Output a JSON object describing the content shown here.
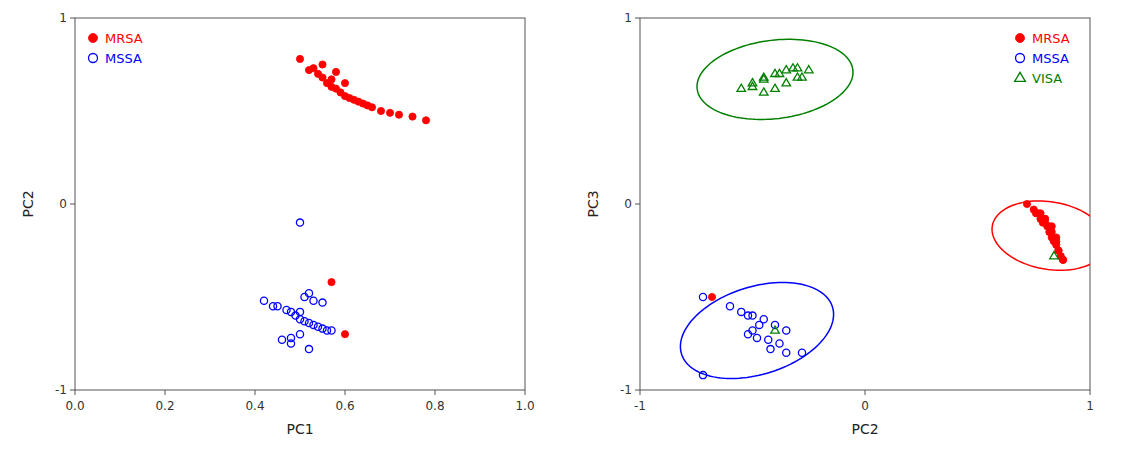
{
  "chart_data": [
    {
      "type": "scatter",
      "xlabel": "PC1",
      "ylabel": "PC2",
      "xlim": [
        0,
        1
      ],
      "ylim": [
        -1,
        1
      ],
      "xticks": [
        {
          "value": 0,
          "label": "0.0"
        },
        0.2,
        0.4,
        0.6,
        0.8,
        {
          "value": 1.0,
          "label": "1.0"
        }
      ],
      "yticks": [
        -1,
        0,
        1
      ],
      "legend": "upper left",
      "grid": false,
      "series": [
        {
          "name": "MRSA",
          "color": "#ff0000",
          "marker": "circle",
          "x": [
            0.5,
            0.52,
            0.54,
            0.55,
            0.56,
            0.57,
            0.58,
            0.59,
            0.6,
            0.61,
            0.62,
            0.63,
            0.64,
            0.65,
            0.66,
            0.68,
            0.7,
            0.72,
            0.75,
            0.78,
            0.55,
            0.53,
            0.58,
            0.6,
            0.57,
            0.57,
            0.6
          ],
          "values": [
            0.78,
            0.72,
            0.7,
            0.68,
            0.65,
            0.63,
            0.62,
            0.6,
            0.58,
            0.57,
            0.56,
            0.55,
            0.54,
            0.53,
            0.52,
            0.5,
            0.49,
            0.48,
            0.47,
            0.45,
            0.75,
            0.73,
            0.71,
            0.65,
            0.67,
            -0.42,
            -0.7
          ]
        },
        {
          "name": "MSSA",
          "color": "#0000ff",
          "marker": "circle-open",
          "x": [
            0.5,
            0.42,
            0.45,
            0.47,
            0.48,
            0.49,
            0.5,
            0.51,
            0.52,
            0.53,
            0.54,
            0.55,
            0.56,
            0.57,
            0.5,
            0.48,
            0.46,
            0.51,
            0.53,
            0.44,
            0.52,
            0.55,
            0.5,
            0.48,
            0.52
          ],
          "values": [
            -0.1,
            -0.52,
            -0.55,
            -0.57,
            -0.58,
            -0.6,
            -0.62,
            -0.63,
            -0.64,
            -0.65,
            -0.66,
            -0.67,
            -0.68,
            -0.68,
            -0.7,
            -0.72,
            -0.73,
            -0.5,
            -0.52,
            -0.55,
            -0.48,
            -0.53,
            -0.58,
            -0.75,
            -0.78
          ]
        }
      ]
    },
    {
      "type": "scatter",
      "xlabel": "PC2",
      "ylabel": "PC3",
      "xlim": [
        -1,
        1
      ],
      "ylim": [
        -1,
        1
      ],
      "xticks": [
        -1,
        0,
        1
      ],
      "yticks": [
        -1,
        0,
        1
      ],
      "legend": "upper right",
      "grid": false,
      "series": [
        {
          "name": "MRSA",
          "color": "#ff0000",
          "marker": "circle",
          "x": [
            0.72,
            0.75,
            0.77,
            0.78,
            0.8,
            0.81,
            0.82,
            0.83,
            0.84,
            0.85,
            0.86,
            0.87,
            0.88,
            0.76,
            0.79,
            0.82,
            0.84,
            0.8,
            0.83,
            0.85,
            0.78,
            0.82,
            0.85,
            0.88,
            0.8,
            0.83,
            0.86,
            -0.68
          ],
          "values": [
            0.0,
            -0.03,
            -0.05,
            -0.08,
            -0.1,
            -0.12,
            -0.15,
            -0.18,
            -0.2,
            -0.22,
            -0.25,
            -0.28,
            -0.3,
            -0.05,
            -0.1,
            -0.15,
            -0.2,
            -0.08,
            -0.12,
            -0.18,
            -0.05,
            -0.12,
            -0.2,
            -0.3,
            -0.08,
            -0.15,
            -0.25,
            -0.5
          ]
        },
        {
          "name": "MSSA",
          "color": "#0000ff",
          "marker": "circle-open",
          "x": [
            -0.72,
            -0.6,
            -0.55,
            -0.5,
            -0.45,
            -0.4,
            -0.35,
            -0.52,
            -0.48,
            -0.43,
            -0.38,
            -0.42,
            -0.47,
            -0.35,
            -0.5,
            -0.28,
            -0.52,
            -0.72
          ],
          "values": [
            -0.5,
            -0.55,
            -0.58,
            -0.6,
            -0.62,
            -0.65,
            -0.68,
            -0.7,
            -0.72,
            -0.73,
            -0.75,
            -0.78,
            -0.65,
            -0.8,
            -0.68,
            -0.8,
            -0.6,
            -0.92
          ]
        },
        {
          "name": "VISA",
          "color": "#008000",
          "marker": "triangle-open",
          "x": [
            -0.55,
            -0.5,
            -0.45,
            -0.4,
            -0.35,
            -0.3,
            -0.25,
            -0.45,
            -0.4,
            -0.35,
            -0.3,
            -0.5,
            -0.45,
            -0.38,
            -0.32,
            -0.28,
            0.84,
            -0.4
          ],
          "values": [
            0.62,
            0.65,
            0.68,
            0.7,
            0.72,
            0.73,
            0.72,
            0.6,
            0.62,
            0.65,
            0.68,
            0.63,
            0.67,
            0.7,
            0.73,
            0.68,
            -0.28,
            -0.68
          ]
        }
      ],
      "ellipses": [
        {
          "color": "#ff0000",
          "x": 0.82,
          "y": -0.17,
          "width": 0.36,
          "height": 0.52,
          "angle": 75
        },
        {
          "color": "#0000ff",
          "x": -0.48,
          "y": -0.68,
          "width": 0.72,
          "height": 0.46,
          "angle": 25
        },
        {
          "color": "#008000",
          "x": -0.4,
          "y": 0.67,
          "width": 0.7,
          "height": 0.42,
          "angle": 10
        }
      ]
    }
  ]
}
